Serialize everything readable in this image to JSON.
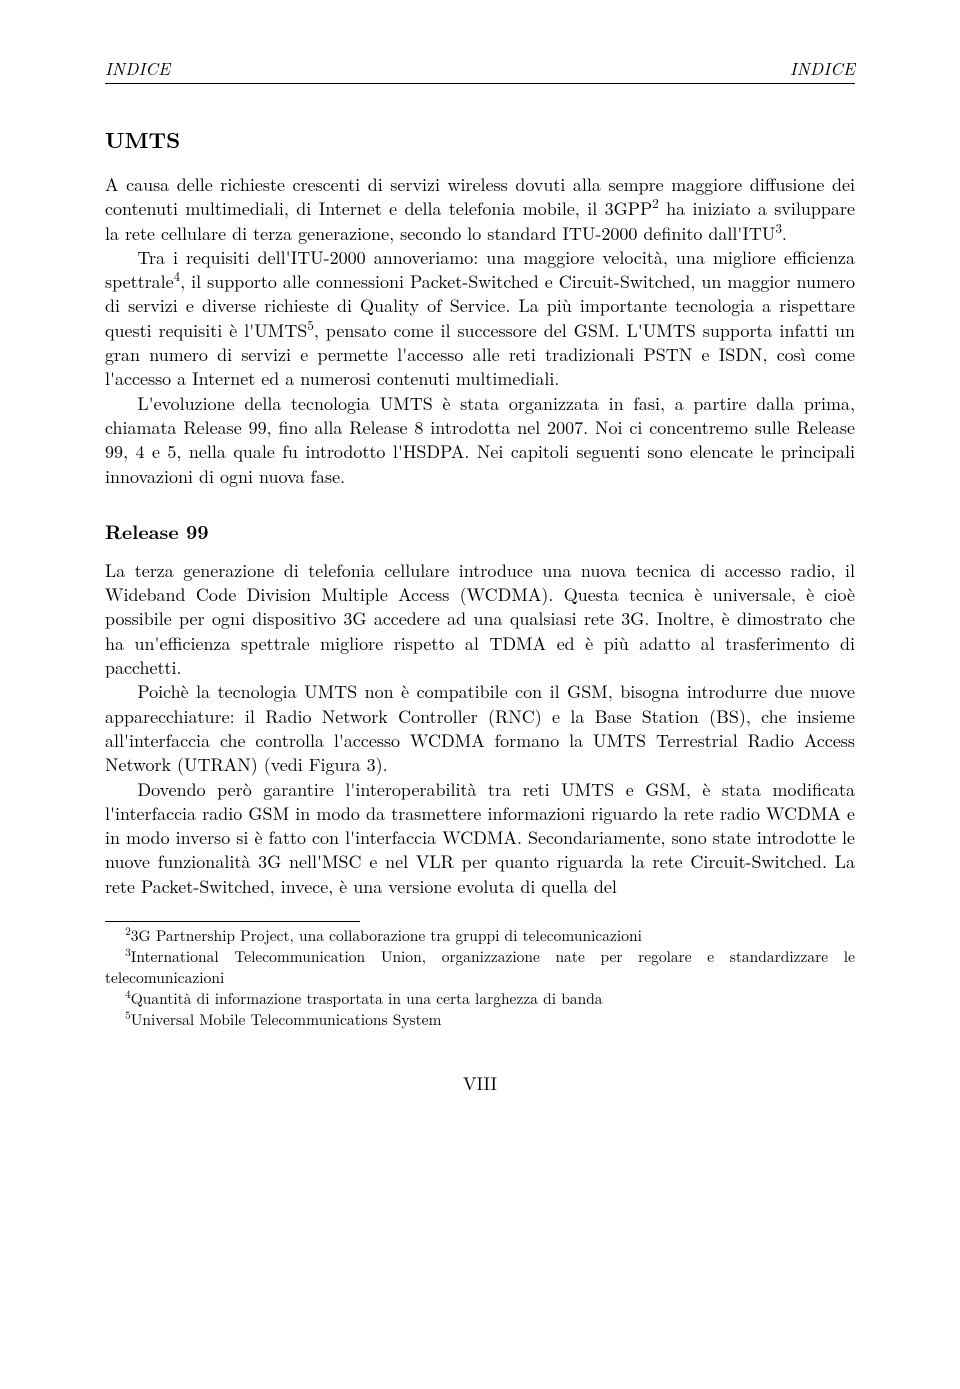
{
  "header": {
    "left": "INDICE",
    "right": "INDICE"
  },
  "section": {
    "title": "UMTS",
    "para1": "A causa delle richieste crescenti di servizi wireless dovuti alla sempre maggiore diffusione dei contenuti multimediali, di Internet e della telefonia mobile, il 3GPP",
    "sup1": "2",
    "para1b": " ha iniziato a sviluppare la rete cellulare di terza generazione, secondo lo standard ITU-2000 definito dall'ITU",
    "sup1c": "3",
    "para1d": ".",
    "para2a": "Tra i requisiti dell'ITU-2000 annoveriamo: una maggiore velocità, una migliore efficienza spettrale",
    "sup2a": "4",
    "para2b": ", il supporto alle connessioni Packet-Switched e Circuit-Switched, un maggior numero di servizi e diverse richieste di Quality of Service. La più importante tecnologia a rispettare questi requisiti è l'UMTS",
    "sup2c": "5",
    "para2d": ", pensato come il successore del GSM. L'UMTS supporta infatti un gran numero di servizi e permette l'accesso alle reti tradizionali PSTN e ISDN, così come l'accesso a Internet ed a numerosi contenuti multimediali.",
    "para3": "L'evoluzione della tecnologia UMTS è stata organizzata in fasi, a partire dalla prima, chiamata Release 99, fino alla Release 8 introdotta nel 2007. Noi ci concentremo sulle Release 99, 4 e 5, nella quale fu introdotto l'HSDPA. Nei capitoli seguenti sono elencate le principali innovazioni di ogni nuova fase."
  },
  "subsection": {
    "title": "Release 99",
    "para1": "La terza generazione di telefonia cellulare introduce una nuova tecnica di accesso radio, il Wideband Code Division Multiple Access (WCDMA). Questa tecnica è universale, è cioè possibile per ogni dispositivo 3G accedere ad una qualsiasi rete 3G. Inoltre, è dimostrato che ha un'efficienza spettrale migliore rispetto al TDMA ed è più adatto al trasferimento di pacchetti.",
    "para2": "Poichè la tecnologia UMTS non è compatibile con il GSM, bisogna introdurre due nuove apparecchiature: il Radio Network Controller (RNC) e la Base Station (BS), che insieme all'interfaccia che controlla l'accesso WCDMA formano la UMTS Terrestrial Radio Access Network (UTRAN) (vedi Figura 3).",
    "para3": "Dovendo però garantire l'interoperabilità tra reti UMTS e GSM, è stata modificata l'interfaccia radio GSM in modo da trasmettere informazioni riguardo la rete radio WCDMA e in modo inverso si è fatto con l'interfaccia WCDMA. Secondariamente, sono state introdotte le nuove funzionalità 3G nell'MSC e nel VLR per quanto riguarda la rete Circuit-Switched. La rete Packet-Switched, invece, è una versione evoluta di quella del"
  },
  "footnotes": {
    "fn2_num": "2",
    "fn2_text": "3G Partnership Project, una collaborazione tra gruppi di telecomunicazioni",
    "fn3_num": "3",
    "fn3_text": "International Telecommunication Union, organizzazione nate per regolare e standardizzare le telecomunicazioni",
    "fn4_num": "4",
    "fn4_text": "Quantità di informazione trasportata in una certa larghezza di banda",
    "fn5_num": "5",
    "fn5_text": "Universal Mobile Telecommunications System"
  },
  "pageNumber": "VIII"
}
